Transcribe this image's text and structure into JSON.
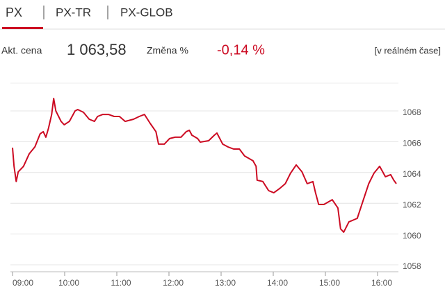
{
  "tabs": [
    "PX",
    "PX-TR",
    "PX-GLOB"
  ],
  "quote": {
    "price_label": "Akt. cena",
    "price": "1 063,58",
    "change_label": "Změna %",
    "change": "-0,14 %",
    "note": "[v reálném čase]"
  },
  "chart_data": {
    "type": "line",
    "x": [
      9.0,
      9.03,
      9.07,
      9.11,
      9.21,
      9.32,
      9.43,
      9.53,
      9.59,
      9.64,
      9.69,
      9.75,
      9.79,
      9.83,
      9.93,
      9.99,
      10.09,
      10.2,
      10.25,
      10.36,
      10.47,
      10.57,
      10.63,
      10.73,
      10.84,
      10.95,
      11.05,
      11.16,
      11.32,
      11.43,
      11.53,
      11.64,
      11.75,
      11.8,
      11.91,
      12.01,
      12.12,
      12.23,
      12.33,
      12.39,
      12.44,
      12.55,
      12.6,
      12.76,
      12.87,
      12.92,
      13.03,
      13.13,
      13.24,
      13.35,
      13.45,
      13.61,
      13.67,
      13.69,
      13.8,
      13.91,
      14.01,
      14.12,
      14.23,
      14.33,
      14.44,
      14.55,
      14.65,
      14.76,
      14.81,
      14.87,
      14.97,
      15.13,
      15.24,
      15.29,
      15.35,
      15.45,
      15.61,
      15.72,
      15.83,
      15.93,
      16.04,
      16.15,
      16.25,
      16.31,
      16.36
    ],
    "series": [
      {
        "color": "#cc0a22",
        "values": [
          1065.61,
          1064.4,
          1063.41,
          1064.04,
          1064.4,
          1065.21,
          1065.66,
          1066.51,
          1066.65,
          1066.29,
          1066.87,
          1067.77,
          1068.81,
          1068.0,
          1067.32,
          1067.1,
          1067.32,
          1068.0,
          1068.09,
          1067.91,
          1067.46,
          1067.32,
          1067.64,
          1067.77,
          1067.77,
          1067.64,
          1067.64,
          1067.32,
          1067.46,
          1067.64,
          1067.77,
          1067.19,
          1066.65,
          1065.84,
          1065.84,
          1066.2,
          1066.29,
          1066.29,
          1066.65,
          1066.74,
          1066.42,
          1066.2,
          1065.97,
          1066.06,
          1066.42,
          1066.56,
          1065.84,
          1065.66,
          1065.52,
          1065.52,
          1065.07,
          1064.76,
          1064.4,
          1063.5,
          1063.41,
          1062.82,
          1062.68,
          1062.95,
          1063.27,
          1063.95,
          1064.49,
          1064.04,
          1063.27,
          1063.41,
          1062.68,
          1061.92,
          1061.92,
          1062.23,
          1061.69,
          1060.34,
          1060.12,
          1060.79,
          1061.02,
          1062.14,
          1063.27,
          1063.95,
          1064.4,
          1063.72,
          1063.86,
          1063.5,
          1063.27
        ]
      }
    ],
    "xlim": [
      9,
      16.4
    ],
    "xticks": [
      {
        "value": 9,
        "label": "09:00"
      },
      {
        "value": 10,
        "label": "10:00"
      },
      {
        "value": 11,
        "label": "11:00"
      },
      {
        "value": 12,
        "label": "12:00"
      },
      {
        "value": 13,
        "label": "13:00"
      },
      {
        "value": 14,
        "label": "14:00"
      },
      {
        "value": 15,
        "label": "15:00"
      },
      {
        "value": 16,
        "label": "16:00"
      }
    ],
    "ylim": [
      1057.55,
      1069.8
    ],
    "yticks": [
      1058,
      1060,
      1062,
      1064,
      1066,
      1068
    ],
    "grid": true
  }
}
